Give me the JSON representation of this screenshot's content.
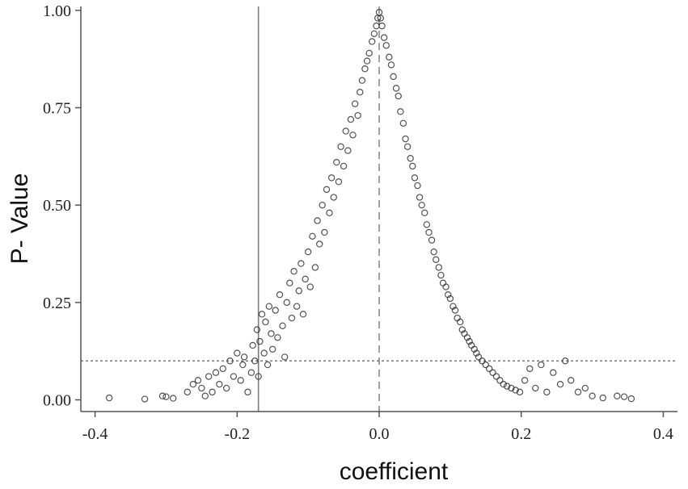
{
  "chart_data": {
    "type": "scatter",
    "title": "",
    "xlabel": "coefficient",
    "ylabel": "P- Value",
    "xlim": [
      -0.42,
      0.42
    ],
    "ylim": [
      -0.03,
      1.01
    ],
    "x_ticks": [
      -0.4,
      -0.2,
      0.0,
      0.2,
      0.4
    ],
    "x_tick_labels": [
      "-0.4",
      "-0.2",
      "0.0",
      "0.2",
      "0.4"
    ],
    "y_ticks": [
      0.0,
      0.25,
      0.5,
      0.75,
      1.0
    ],
    "y_tick_labels": [
      "0.00",
      "0.25",
      "0.50",
      "0.75",
      "1.00"
    ],
    "reference_lines": [
      {
        "orientation": "vertical",
        "value": -0.17,
        "style": "solid"
      },
      {
        "orientation": "vertical",
        "value": 0.0,
        "style": "dashed"
      },
      {
        "orientation": "horizontal",
        "value": 0.1,
        "style": "dotted"
      }
    ],
    "marker": "open-circle",
    "colors": {
      "marker": "#333333",
      "axis": "#555555",
      "reference": "#777777"
    },
    "series": [
      {
        "points": [
          [
            -0.38,
            0.005
          ],
          [
            -0.33,
            0.002
          ],
          [
            -0.305,
            0.01
          ],
          [
            -0.3,
            0.008
          ],
          [
            -0.29,
            0.004
          ],
          [
            -0.27,
            0.02
          ],
          [
            -0.262,
            0.04
          ],
          [
            -0.255,
            0.05
          ],
          [
            -0.25,
            0.03
          ],
          [
            -0.245,
            0.01
          ],
          [
            -0.24,
            0.06
          ],
          [
            -0.235,
            0.02
          ],
          [
            -0.23,
            0.07
          ],
          [
            -0.225,
            0.04
          ],
          [
            -0.22,
            0.08
          ],
          [
            -0.215,
            0.03
          ],
          [
            -0.21,
            0.1
          ],
          [
            -0.205,
            0.06
          ],
          [
            -0.2,
            0.12
          ],
          [
            -0.195,
            0.05
          ],
          [
            -0.192,
            0.09
          ],
          [
            -0.19,
            0.11
          ],
          [
            -0.185,
            0.02
          ],
          [
            -0.18,
            0.07
          ],
          [
            -0.178,
            0.14
          ],
          [
            -0.175,
            0.1
          ],
          [
            -0.172,
            0.18
          ],
          [
            -0.17,
            0.06
          ],
          [
            -0.168,
            0.15
          ],
          [
            -0.165,
            0.22
          ],
          [
            -0.162,
            0.12
          ],
          [
            -0.16,
            0.2
          ],
          [
            -0.157,
            0.09
          ],
          [
            -0.155,
            0.24
          ],
          [
            -0.152,
            0.17
          ],
          [
            -0.15,
            0.13
          ],
          [
            -0.146,
            0.23
          ],
          [
            -0.143,
            0.16
          ],
          [
            -0.14,
            0.27
          ],
          [
            -0.136,
            0.19
          ],
          [
            -0.133,
            0.11
          ],
          [
            -0.13,
            0.25
          ],
          [
            -0.126,
            0.3
          ],
          [
            -0.123,
            0.21
          ],
          [
            -0.12,
            0.33
          ],
          [
            -0.116,
            0.24
          ],
          [
            -0.113,
            0.28
          ],
          [
            -0.11,
            0.35
          ],
          [
            -0.107,
            0.22
          ],
          [
            -0.104,
            0.31
          ],
          [
            -0.1,
            0.38
          ],
          [
            -0.097,
            0.29
          ],
          [
            -0.094,
            0.42
          ],
          [
            -0.09,
            0.34
          ],
          [
            -0.087,
            0.46
          ],
          [
            -0.084,
            0.4
          ],
          [
            -0.08,
            0.5
          ],
          [
            -0.077,
            0.43
          ],
          [
            -0.074,
            0.54
          ],
          [
            -0.07,
            0.48
          ],
          [
            -0.067,
            0.57
          ],
          [
            -0.064,
            0.52
          ],
          [
            -0.06,
            0.61
          ],
          [
            -0.057,
            0.56
          ],
          [
            -0.054,
            0.65
          ],
          [
            -0.05,
            0.6
          ],
          [
            -0.047,
            0.69
          ],
          [
            -0.044,
            0.64
          ],
          [
            -0.04,
            0.72
          ],
          [
            -0.037,
            0.68
          ],
          [
            -0.034,
            0.76
          ],
          [
            -0.03,
            0.73
          ],
          [
            -0.027,
            0.79
          ],
          [
            -0.024,
            0.82
          ],
          [
            -0.02,
            0.85
          ],
          [
            -0.017,
            0.87
          ],
          [
            -0.014,
            0.89
          ],
          [
            -0.01,
            0.92
          ],
          [
            -0.007,
            0.94
          ],
          [
            -0.004,
            0.96
          ],
          [
            -0.002,
            0.98
          ],
          [
            0.0,
            0.995
          ],
          [
            0.002,
            0.98
          ],
          [
            0.004,
            0.96
          ],
          [
            0.007,
            0.93
          ],
          [
            0.01,
            0.91
          ],
          [
            0.014,
            0.88
          ],
          [
            0.017,
            0.86
          ],
          [
            0.02,
            0.83
          ],
          [
            0.024,
            0.8
          ],
          [
            0.027,
            0.78
          ],
          [
            0.03,
            0.74
          ],
          [
            0.034,
            0.71
          ],
          [
            0.037,
            0.67
          ],
          [
            0.04,
            0.65
          ],
          [
            0.044,
            0.62
          ],
          [
            0.047,
            0.6
          ],
          [
            0.05,
            0.57
          ],
          [
            0.054,
            0.55
          ],
          [
            0.057,
            0.52
          ],
          [
            0.06,
            0.5
          ],
          [
            0.064,
            0.48
          ],
          [
            0.067,
            0.45
          ],
          [
            0.07,
            0.43
          ],
          [
            0.074,
            0.41
          ],
          [
            0.077,
            0.38
          ],
          [
            0.08,
            0.36
          ],
          [
            0.084,
            0.34
          ],
          [
            0.087,
            0.32
          ],
          [
            0.09,
            0.3
          ],
          [
            0.094,
            0.29
          ],
          [
            0.097,
            0.27
          ],
          [
            0.1,
            0.26
          ],
          [
            0.104,
            0.24
          ],
          [
            0.107,
            0.23
          ],
          [
            0.11,
            0.21
          ],
          [
            0.114,
            0.2
          ],
          [
            0.117,
            0.18
          ],
          [
            0.12,
            0.17
          ],
          [
            0.124,
            0.16
          ],
          [
            0.127,
            0.15
          ],
          [
            0.13,
            0.14
          ],
          [
            0.134,
            0.13
          ],
          [
            0.137,
            0.12
          ],
          [
            0.14,
            0.11
          ],
          [
            0.145,
            0.1
          ],
          [
            0.15,
            0.09
          ],
          [
            0.155,
            0.08
          ],
          [
            0.16,
            0.07
          ],
          [
            0.165,
            0.06
          ],
          [
            0.17,
            0.05
          ],
          [
            0.175,
            0.04
          ],
          [
            0.18,
            0.035
          ],
          [
            0.186,
            0.03
          ],
          [
            0.192,
            0.025
          ],
          [
            0.198,
            0.02
          ],
          [
            0.205,
            0.05
          ],
          [
            0.212,
            0.08
          ],
          [
            0.22,
            0.03
          ],
          [
            0.228,
            0.09
          ],
          [
            0.236,
            0.02
          ],
          [
            0.245,
            0.07
          ],
          [
            0.255,
            0.04
          ],
          [
            0.262,
            0.1
          ],
          [
            0.27,
            0.05
          ],
          [
            0.28,
            0.02
          ],
          [
            0.29,
            0.03
          ],
          [
            0.3,
            0.01
          ],
          [
            0.315,
            0.005
          ],
          [
            0.335,
            0.01
          ],
          [
            0.345,
            0.008
          ],
          [
            0.355,
            0.003
          ]
        ]
      }
    ]
  }
}
